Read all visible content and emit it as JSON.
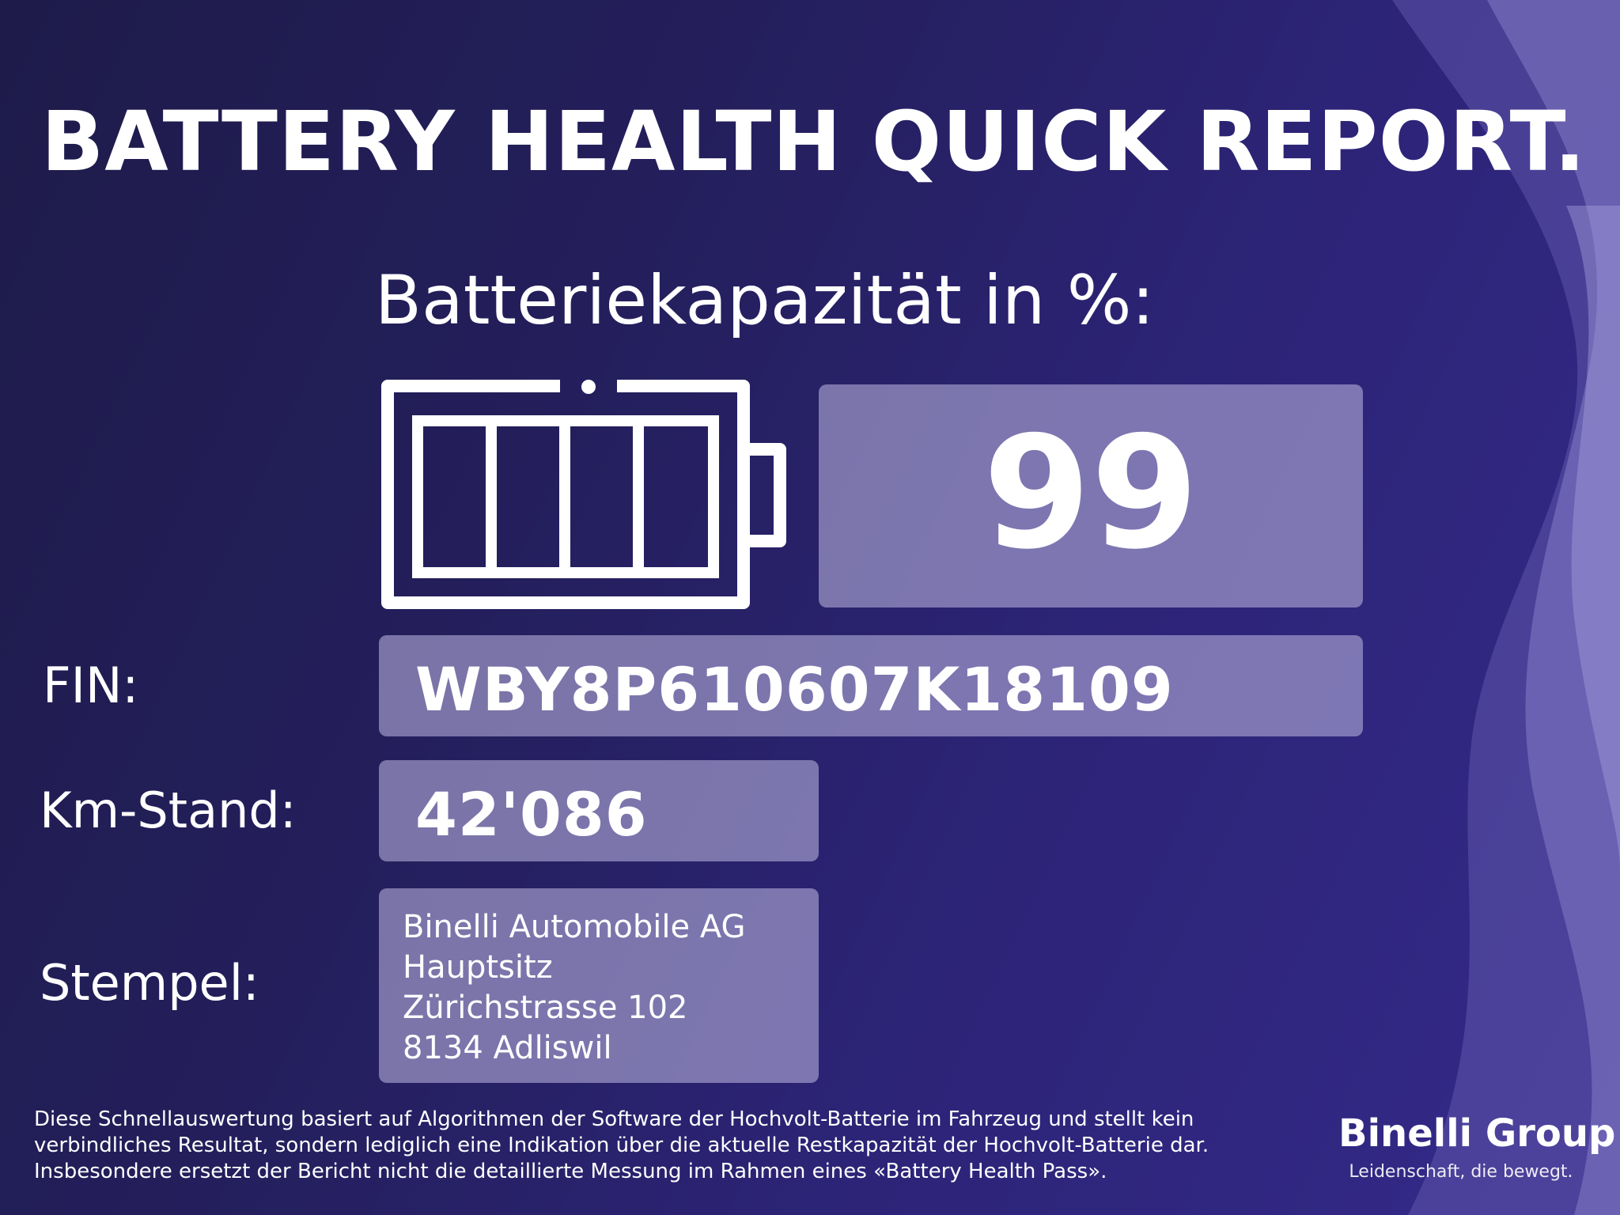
{
  "title": "BATTERY HEALTH QUICK REPORT.",
  "subtitle": "Batteriekapazität in %:",
  "battery_icon": "battery-full-icon",
  "capacity": {
    "value": "99"
  },
  "fin": {
    "label": "FIN:",
    "value": "WBY8P610607K18109"
  },
  "km": {
    "label": "Km-Stand:",
    "value": "42'086"
  },
  "stamp": {
    "label": "Stempel:",
    "lines": [
      "Binelli Automobile AG",
      "Hauptsitz",
      "Zürichstrasse 102",
      "8134 Adliswil"
    ]
  },
  "disclaimer": {
    "lines": [
      "Diese Schnellauswertung basiert auf Algorithmen der Software der Hochvolt-Batterie im Fahrzeug und stellt kein",
      "verbindliches Resultat, sondern lediglich eine Indikation über die aktuelle Restkapazität der Hochvolt-Batterie dar.",
      "Insbesondere ersetzt der Bericht nicht die detaillierte Messung im Rahmen eines «Battery Health Pass»."
    ]
  },
  "brand": {
    "name": "Binelli Group",
    "tagline": "Leidenschaft, die bewegt."
  },
  "colors": {
    "background": "#241f5c",
    "panel": "#8f89c4",
    "text": "#ffffff"
  }
}
